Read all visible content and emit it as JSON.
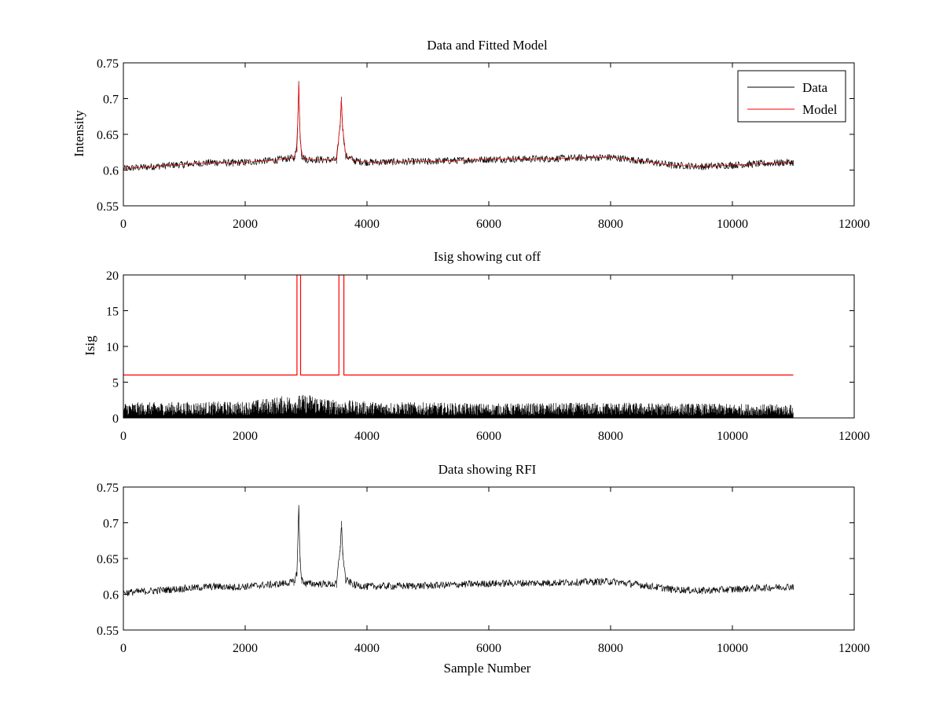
{
  "chart_data": [
    {
      "type": "line",
      "title": "Data and Fitted Model",
      "xlabel": "",
      "ylabel": "Intensity",
      "xlim": [
        0,
        12000
      ],
      "ylim": [
        0.55,
        0.75
      ],
      "xticks": [
        0,
        2000,
        4000,
        6000,
        8000,
        10000,
        12000
      ],
      "yticks": [
        0.55,
        0.6,
        0.65,
        0.7,
        0.75
      ],
      "ytick_labels": [
        "0.55",
        "0.6",
        "0.65",
        "0.7",
        "0.75"
      ],
      "grid": false,
      "legend": {
        "placement": "top-right",
        "entries": [
          "Data",
          "Model"
        ]
      },
      "series": [
        {
          "name": "Data",
          "color": "#000000",
          "noise_amplitude": 0.005,
          "x": [
            0,
            500,
            1000,
            1500,
            1800,
            2000,
            2500,
            2800,
            2850,
            2880,
            2900,
            2930,
            3000,
            3500,
            3560,
            3580,
            3600,
            3650,
            3800,
            4000,
            5000,
            6000,
            7000,
            8000,
            8500,
            9000,
            9500,
            10000,
            11000
          ],
          "values": [
            0.602,
            0.605,
            0.608,
            0.611,
            0.61,
            0.611,
            0.614,
            0.617,
            0.63,
            0.722,
            0.65,
            0.62,
            0.615,
            0.614,
            0.665,
            0.7,
            0.66,
            0.62,
            0.613,
            0.611,
            0.612,
            0.615,
            0.616,
            0.618,
            0.613,
            0.607,
            0.605,
            0.607,
            0.611
          ]
        },
        {
          "name": "Model",
          "color": "#ff0000",
          "noise_amplitude": 0,
          "x": [
            0,
            500,
            1000,
            1500,
            1800,
            2000,
            2500,
            2800,
            2850,
            2880,
            2900,
            2930,
            3000,
            3500,
            3560,
            3580,
            3600,
            3650,
            3800,
            4000,
            5000,
            6000,
            7000,
            8000,
            8500,
            9000,
            9500,
            10000,
            11000
          ],
          "values": [
            0.602,
            0.605,
            0.608,
            0.611,
            0.61,
            0.611,
            0.614,
            0.617,
            0.63,
            0.722,
            0.65,
            0.62,
            0.615,
            0.614,
            0.665,
            0.7,
            0.66,
            0.62,
            0.613,
            0.611,
            0.612,
            0.615,
            0.616,
            0.618,
            0.613,
            0.607,
            0.605,
            0.607,
            0.611
          ]
        }
      ]
    },
    {
      "type": "line",
      "title": "Isig showing cut off",
      "xlabel": "",
      "ylabel": "Isig",
      "xlim": [
        0,
        12000
      ],
      "ylim": [
        0,
        20
      ],
      "xticks": [
        0,
        2000,
        4000,
        6000,
        8000,
        10000,
        12000
      ],
      "yticks": [
        0,
        5,
        10,
        15,
        20
      ],
      "ytick_labels": [
        "0",
        "5",
        "10",
        "15",
        "20"
      ],
      "grid": false,
      "series": [
        {
          "color": "#000000",
          "style": "noise-fill",
          "x": [
            0,
            2000,
            2700,
            3100,
            3400,
            4000,
            6000,
            8000,
            11000
          ],
          "values": [
            1.5,
            1.6,
            2.2,
            2.3,
            1.8,
            1.6,
            1.4,
            1.5,
            1.3
          ]
        },
        {
          "color": "#ff0000",
          "style": "step",
          "x": [
            0,
            2850,
            2850,
            2910,
            2910,
            3540,
            3540,
            3620,
            3620,
            11000
          ],
          "values": [
            6,
            6,
            20,
            20,
            6,
            6,
            20,
            20,
            6,
            6
          ]
        }
      ]
    },
    {
      "type": "line",
      "title": "Data showing RFI",
      "xlabel": "Sample Number",
      "ylabel": "",
      "xlim": [
        0,
        12000
      ],
      "ylim": [
        0.55,
        0.75
      ],
      "xticks": [
        0,
        2000,
        4000,
        6000,
        8000,
        10000,
        12000
      ],
      "yticks": [
        0.55,
        0.6,
        0.65,
        0.7,
        0.75
      ],
      "ytick_labels": [
        "0.55",
        "0.6",
        "0.65",
        "0.7",
        "0.75"
      ],
      "grid": false,
      "series": [
        {
          "color": "#000000",
          "noise_amplitude": 0.005,
          "x": [
            0,
            500,
            1000,
            1500,
            1800,
            2000,
            2500,
            2800,
            2850,
            2880,
            2900,
            2930,
            3000,
            3500,
            3560,
            3580,
            3600,
            3650,
            3800,
            4000,
            5000,
            6000,
            7000,
            8000,
            8500,
            9000,
            9500,
            10000,
            11000
          ],
          "values": [
            0.602,
            0.605,
            0.608,
            0.611,
            0.61,
            0.611,
            0.614,
            0.617,
            0.63,
            0.722,
            0.65,
            0.62,
            0.615,
            0.614,
            0.665,
            0.7,
            0.66,
            0.62,
            0.613,
            0.611,
            0.612,
            0.615,
            0.616,
            0.618,
            0.613,
            0.607,
            0.605,
            0.607,
            0.611
          ]
        }
      ]
    }
  ]
}
